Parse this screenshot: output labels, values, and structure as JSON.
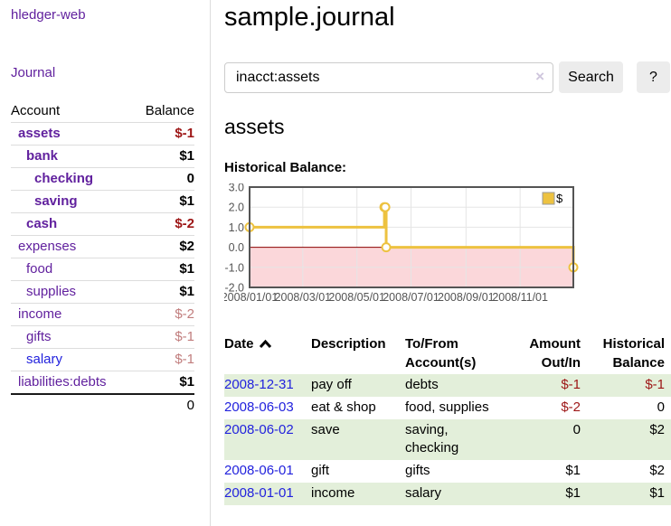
{
  "app": {
    "brand": "hledger-web",
    "nav_journal": "Journal"
  },
  "sidebar": {
    "header": {
      "account": "Account",
      "balance": "Balance"
    },
    "accounts": [
      {
        "name": "assets",
        "balance": "$-1",
        "indent": 0,
        "bold": true,
        "balance_class": "neg-strong",
        "balance_bold": true
      },
      {
        "name": "bank",
        "balance": "$1",
        "indent": 1,
        "bold": true,
        "balance_class": "",
        "balance_bold": true
      },
      {
        "name": "checking",
        "balance": "0",
        "indent": 2,
        "bold": true,
        "balance_class": "",
        "balance_bold": true
      },
      {
        "name": "saving",
        "balance": "$1",
        "indent": 2,
        "bold": true,
        "balance_class": "",
        "balance_bold": true
      },
      {
        "name": "cash",
        "balance": "$-2",
        "indent": 1,
        "bold": true,
        "balance_class": "neg-strong",
        "balance_bold": true
      },
      {
        "name": "expenses",
        "balance": "$2",
        "indent": 0,
        "bold": false,
        "balance_class": "",
        "balance_bold": true
      },
      {
        "name": "food",
        "balance": "$1",
        "indent": 1,
        "bold": false,
        "balance_class": "",
        "balance_bold": true
      },
      {
        "name": "supplies",
        "balance": "$1",
        "indent": 1,
        "bold": false,
        "balance_class": "",
        "balance_bold": true
      },
      {
        "name": "income",
        "balance": "$-2",
        "indent": 0,
        "bold": false,
        "balance_class": "neg-muted",
        "balance_bold": false
      },
      {
        "name": "gifts",
        "balance": "$-1",
        "indent": 1,
        "bold": false,
        "balance_class": "neg-muted",
        "balance_bold": false
      },
      {
        "name": "salary",
        "balance": "$-1",
        "indent": 1,
        "bold": false,
        "balance_class": "neg-muted",
        "balance_bold": false,
        "link_color": "blue"
      },
      {
        "name": "liabilities:debts",
        "balance": "$1",
        "indent": 0,
        "bold": false,
        "balance_class": "",
        "balance_bold": true
      }
    ],
    "total": "0"
  },
  "header": {
    "title": "sample.journal"
  },
  "search": {
    "value": "inacct:assets",
    "clear_icon": "×",
    "button_label": "Search",
    "help_label": "?"
  },
  "main": {
    "account_title": "assets",
    "chart_label": "Historical Balance:"
  },
  "chart_data": {
    "type": "line",
    "step": true,
    "title": "Historical Balance",
    "series": [
      {
        "name": "$",
        "points": [
          {
            "date": "2008-01-01",
            "value": 1
          },
          {
            "date": "2008-06-01",
            "value": 2
          },
          {
            "date": "2008-06-02",
            "value": 2
          },
          {
            "date": "2008-06-03",
            "value": 0
          },
          {
            "date": "2008-12-31",
            "value": -1
          }
        ]
      }
    ],
    "x_ticks": [
      {
        "date": "2008-01-01",
        "label": "2008/01/01"
      },
      {
        "date": "2008-03-01",
        "label": "2008/03/01"
      },
      {
        "date": "2008-05-01",
        "label": "2008/05/01"
      },
      {
        "date": "2008-07-01",
        "label": "2008/07/01"
      },
      {
        "date": "2008-09-01",
        "label": "2008/09/01"
      },
      {
        "date": "2008-11-01",
        "label": "2008/11/01"
      }
    ],
    "y_ticks": [
      {
        "value": 3,
        "label": "3.0"
      },
      {
        "value": 2,
        "label": "2.0"
      },
      {
        "value": 1,
        "label": "1.0"
      },
      {
        "value": 0,
        "label": "0.0"
      },
      {
        "value": -1,
        "label": "-1.0"
      },
      {
        "value": -2,
        "label": "-2.0"
      }
    ],
    "ylim": [
      -2,
      3
    ],
    "xlim": [
      "2008-01-01",
      "2008-12-31"
    ],
    "grid": true,
    "legend_position": "top-right",
    "line_color": "#edc240",
    "marker_fill": "#ffffff",
    "negative_region_fill": "#fbd7da",
    "zero_line_color": "#8b0000",
    "border_color": "#545454",
    "grid_color": "#e5e5e5",
    "tick_label_color": "#545454"
  },
  "register": {
    "columns": [
      {
        "label": "Date",
        "sortable": true
      },
      {
        "label": "Description"
      },
      {
        "label": "To/From Account(s)"
      },
      {
        "label": "Amount Out/In"
      },
      {
        "label": "Historical Balance"
      }
    ],
    "rows": [
      {
        "date": "2008-12-31",
        "description": "pay off",
        "accounts": "debts",
        "amount": "$-1",
        "amount_neg": true,
        "balance": "$-1",
        "balance_neg": true
      },
      {
        "date": "2008-06-03",
        "description": "eat & shop",
        "accounts": "food, supplies",
        "amount": "$-2",
        "amount_neg": true,
        "balance": "0",
        "balance_neg": false
      },
      {
        "date": "2008-06-02",
        "description": "save",
        "accounts": "saving, checking",
        "amount": "0",
        "amount_neg": false,
        "balance": "$2",
        "balance_neg": false
      },
      {
        "date": "2008-06-01",
        "description": "gift",
        "accounts": "gifts",
        "amount": "$1",
        "amount_neg": false,
        "balance": "$2",
        "balance_neg": false
      },
      {
        "date": "2008-01-01",
        "description": "income",
        "accounts": "salary",
        "amount": "$1",
        "amount_neg": false,
        "balance": "$1",
        "balance_neg": false
      }
    ]
  },
  "colors": {
    "link_purple": "#61219e",
    "link_blue": "#2222dd",
    "negative_strong": "#9d1616",
    "negative_muted": "#c17d7d",
    "row_stripe_green": "#e3efda",
    "button_bg": "#ececec",
    "chart_gold": "#edc240"
  }
}
